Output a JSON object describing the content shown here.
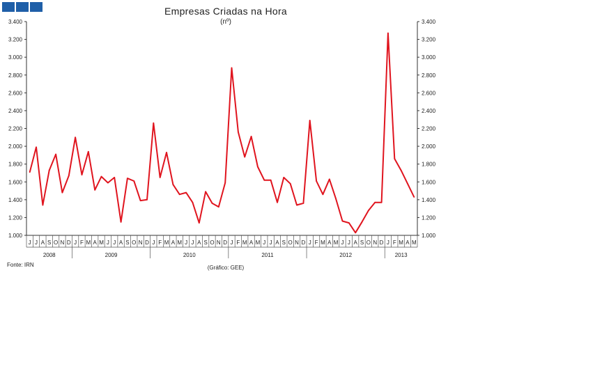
{
  "logo": {
    "colors": [
      "#1f5fa8",
      "#1f5fa8",
      "#1f5fa8"
    ]
  },
  "header": {
    "title": "Empresas Criadas na Hora",
    "subtitle": "(nº)"
  },
  "footer": {
    "source": "Fonte: IRN",
    "credit": "(Gráfico: GEE)"
  },
  "chart_data": {
    "type": "line",
    "ylim": [
      1000,
      3400
    ],
    "yticks": [
      "1.000",
      "1.200",
      "1.400",
      "1.600",
      "1.800",
      "2.000",
      "2.200",
      "2.400",
      "2.600",
      "2.800",
      "3.000",
      "3.200",
      "3.400"
    ],
    "ytick_values": [
      1000,
      1200,
      1400,
      1600,
      1800,
      2000,
      2200,
      2400,
      2600,
      2800,
      3000,
      3200,
      3400
    ],
    "months": [
      "J",
      "J",
      "A",
      "S",
      "O",
      "N",
      "D",
      "J",
      "F",
      "M",
      "A",
      "M",
      "J",
      "J",
      "A",
      "S",
      "O",
      "N",
      "D",
      "J",
      "F",
      "M",
      "A",
      "M",
      "J",
      "J",
      "A",
      "S",
      "O",
      "N",
      "D",
      "J",
      "F",
      "M",
      "A",
      "M",
      "J",
      "J",
      "A",
      "S",
      "O",
      "N",
      "D",
      "J",
      "F",
      "M",
      "A",
      "M",
      "J",
      "J",
      "A",
      "S",
      "O",
      "N",
      "D",
      "J",
      "F",
      "M",
      "A",
      "M"
    ],
    "years": [
      {
        "label": "2008",
        "count": 7
      },
      {
        "label": "2009",
        "count": 12
      },
      {
        "label": "2010",
        "count": 12
      },
      {
        "label": "2011",
        "count": 12
      },
      {
        "label": "2012",
        "count": 12
      },
      {
        "label": "2013",
        "count": 5
      }
    ],
    "series": [
      {
        "color": "#e0141e",
        "values": [
          1710,
          1990,
          1340,
          1730,
          1910,
          1480,
          1670,
          2100,
          1680,
          1940,
          1510,
          1660,
          1590,
          1650,
          1150,
          1640,
          1610,
          1390,
          1400,
          2260,
          1650,
          1930,
          1570,
          1460,
          1480,
          1370,
          1140,
          1490,
          1360,
          1320,
          1590,
          2880,
          2160,
          1880,
          2110,
          1770,
          1620,
          1620,
          1370,
          1650,
          1580,
          1340,
          1360,
          2290,
          1610,
          1460,
          1630,
          1410,
          1160,
          1140,
          1030,
          1150,
          1280,
          1370,
          1370,
          3270,
          1860,
          1730,
          1580,
          1430
        ]
      }
    ],
    "grid": false,
    "legend": "none"
  }
}
